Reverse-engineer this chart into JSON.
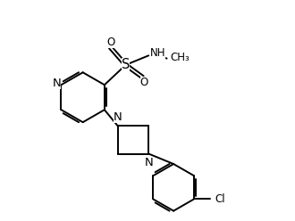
{
  "bg_color": "#ffffff",
  "line_color": "#000000",
  "line_width": 1.4,
  "font_size": 8.5,
  "fig_width": 3.3,
  "fig_height": 2.48,
  "xlim": [
    0,
    9
  ],
  "ylim": [
    0,
    7.5
  ]
}
